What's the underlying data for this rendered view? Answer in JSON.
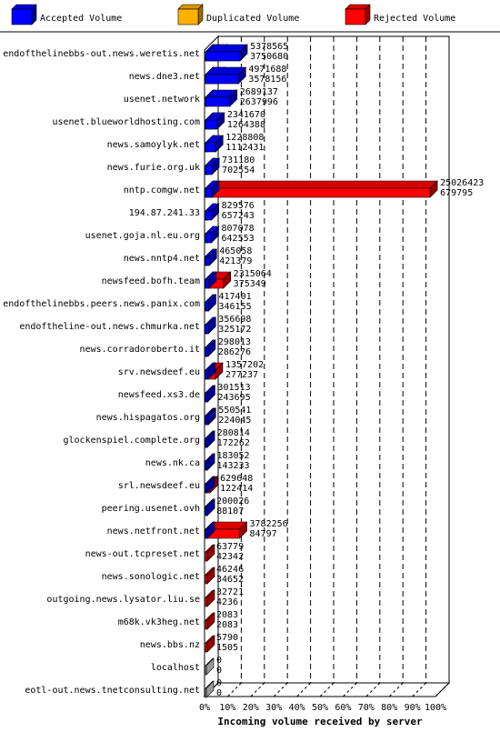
{
  "chart_data": {
    "type": "bar",
    "orientation": "horizontal",
    "stacked": false,
    "style": "3d",
    "xlabel": "Incoming volume received by server",
    "x_ticks": [
      "0%",
      "10%",
      "20%",
      "30%",
      "40%",
      "50%",
      "60%",
      "70%",
      "80%",
      "90%",
      "100%"
    ],
    "grid": true,
    "legend_position": "top",
    "colors": {
      "accepted": "#0000ff",
      "duplicated": "#ffb000",
      "rejected": "#ff0000"
    },
    "series": [
      {
        "name": "Accepted Volume",
        "key": "accepted"
      },
      {
        "name": "Duplicated Volume",
        "key": "duplicated"
      },
      {
        "name": "Rejected Volume",
        "key": "rejected"
      }
    ],
    "servers": [
      {
        "name": "endofthelinebbs-out.news.weretis.net",
        "total": 5378565,
        "accepted": 3750680
      },
      {
        "name": "news.dne3.net",
        "total": 4971688,
        "accepted": 3578156
      },
      {
        "name": "usenet.network",
        "total": 2689137,
        "accepted": 2637996
      },
      {
        "name": "usenet.blueworldhosting.com",
        "total": 2341670,
        "accepted": 1264388
      },
      {
        "name": "news.samoylyk.net",
        "total": 1228808,
        "accepted": 1112431
      },
      {
        "name": "news.furie.org.uk",
        "total": 731180,
        "accepted": 702554
      },
      {
        "name": "nntp.comgw.net",
        "total": 25026423,
        "accepted": 679795
      },
      {
        "name": "194.87.241.33",
        "total": 829576,
        "accepted": 657243
      },
      {
        "name": "usenet.goja.nl.eu.org",
        "total": 807078,
        "accepted": 642553
      },
      {
        "name": "news.nntp4.net",
        "total": 465058,
        "accepted": 421379
      },
      {
        "name": "newsfeed.bofh.team",
        "total": 2315064,
        "accepted": 375349
      },
      {
        "name": "endofthelinebbs.peers.news.panix.com",
        "total": 417401,
        "accepted": 346155
      },
      {
        "name": "endoftheline-out.news.chmurka.net",
        "total": 356698,
        "accepted": 325172
      },
      {
        "name": "news.corradoroberto.it",
        "total": 298013,
        "accepted": 286276
      },
      {
        "name": "srv.newsdeef.eu",
        "total": 1357202,
        "accepted": 277237
      },
      {
        "name": "newsfeed.xs3.de",
        "total": 301513,
        "accepted": 243695
      },
      {
        "name": "news.hispagatos.org",
        "total": 550541,
        "accepted": 224045
      },
      {
        "name": "glockenspiel.complete.org",
        "total": 280814,
        "accepted": 172262
      },
      {
        "name": "news.nk.ca",
        "total": 183052,
        "accepted": 143233
      },
      {
        "name": "srl.newsdeef.eu",
        "total": 629648,
        "accepted": 122414
      },
      {
        "name": "peering.usenet.ovh",
        "total": 200026,
        "accepted": 88107
      },
      {
        "name": "news.netfront.net",
        "total": 3782256,
        "accepted": 84797
      },
      {
        "name": "news-out.tcpreset.net",
        "total": 63779,
        "accepted": 42342
      },
      {
        "name": "news.sonologic.net",
        "total": 46246,
        "accepted": 34652
      },
      {
        "name": "outgoing.news.lysator.liu.se",
        "total": 32721,
        "accepted": 4236
      },
      {
        "name": "m68k.vk3heg.net",
        "total": 2083,
        "accepted": 2083
      },
      {
        "name": "news.bbs.nz",
        "total": 5790,
        "accepted": 1505
      },
      {
        "name": "localhost",
        "total": 0,
        "accepted": 0
      },
      {
        "name": "eotl-out.news.tnetconsulting.net",
        "total": 0,
        "accepted": 0
      }
    ]
  }
}
